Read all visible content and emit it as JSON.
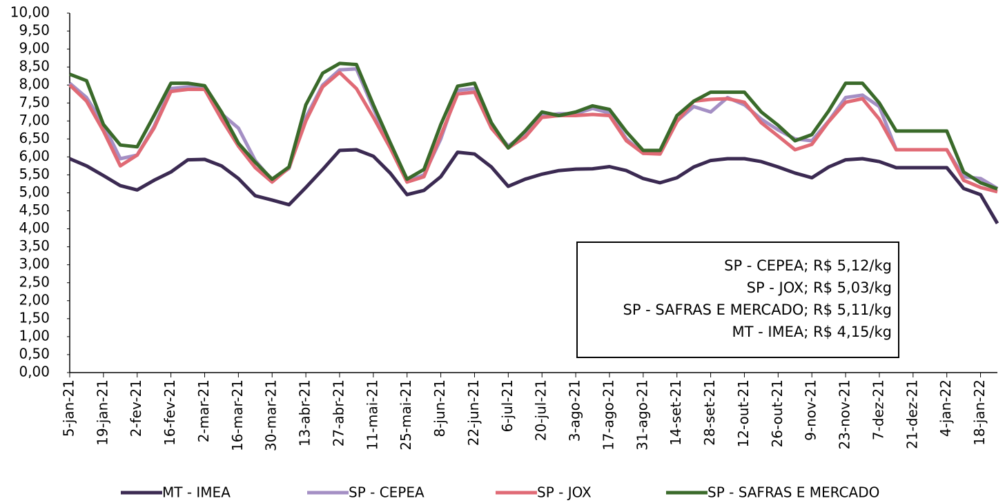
{
  "chart_data": {
    "type": "line",
    "categories": [
      "5-jan-21",
      null,
      "19-jan-21",
      null,
      "2-fev-21",
      null,
      "16-fev-21",
      null,
      "2-mar-21",
      null,
      "16-mar-21",
      null,
      "30-mar-21",
      null,
      "13-abr-21",
      null,
      "27-abr-21",
      null,
      "11-mai-21",
      null,
      "25-mai-21",
      null,
      "8-jun-21",
      null,
      "22-jun-21",
      null,
      "6-jul-21",
      null,
      "20-jul-21",
      null,
      "3-ago-21",
      null,
      "17-ago-21",
      null,
      "31-ago-21",
      null,
      "14-set-21",
      null,
      "28-set-21",
      null,
      "12-out-21",
      null,
      "26-out-21",
      null,
      "9-nov-21",
      null,
      "23-nov-21",
      null,
      "7-dez-21",
      null,
      "21-dez-21",
      null,
      "4-jan-22",
      null,
      "18-jan-22",
      null
    ],
    "series": [
      {
        "name": "MT - IMEA",
        "color": "#3b2a52",
        "values": [
          5.95,
          5.75,
          5.48,
          5.2,
          5.08,
          5.35,
          5.58,
          5.92,
          5.93,
          5.75,
          5.4,
          4.92,
          4.8,
          4.67,
          5.15,
          5.65,
          6.18,
          6.2,
          6.02,
          5.55,
          4.95,
          5.07,
          5.45,
          6.13,
          6.08,
          5.72,
          5.18,
          5.38,
          5.52,
          5.62,
          5.66,
          5.67,
          5.73,
          5.62,
          5.4,
          5.28,
          5.42,
          5.72,
          5.9,
          5.95,
          5.95,
          5.87,
          5.72,
          5.55,
          5.42,
          5.72,
          5.92,
          5.95,
          5.87,
          5.7,
          5.7,
          5.7,
          5.7,
          5.12,
          4.95,
          4.15
        ]
      },
      {
        "name": "SP - CEPEA",
        "color": "#a48fc4",
        "values": [
          8.05,
          7.65,
          6.9,
          5.95,
          6.05,
          6.85,
          7.9,
          7.95,
          7.9,
          7.2,
          6.8,
          5.9,
          5.35,
          5.68,
          7.1,
          8.0,
          8.42,
          8.45,
          7.35,
          6.3,
          5.32,
          5.5,
          6.5,
          7.85,
          7.9,
          6.85,
          6.3,
          6.65,
          7.15,
          7.2,
          7.2,
          7.35,
          7.22,
          6.5,
          6.1,
          6.12,
          7.0,
          7.4,
          7.25,
          7.65,
          7.45,
          7.05,
          6.75,
          6.5,
          6.45,
          7.0,
          7.65,
          7.72,
          7.4,
          6.2,
          6.2,
          6.2,
          6.2,
          5.45,
          5.4,
          5.12
        ]
      },
      {
        "name": "SP - JOX",
        "color": "#e06a75",
        "values": [
          8.0,
          7.55,
          6.72,
          5.75,
          6.05,
          6.8,
          7.82,
          7.88,
          7.88,
          7.05,
          6.3,
          5.7,
          5.3,
          5.7,
          7.0,
          7.95,
          8.35,
          7.9,
          7.1,
          6.25,
          5.3,
          5.45,
          6.6,
          7.75,
          7.8,
          6.8,
          6.25,
          6.55,
          7.1,
          7.15,
          7.15,
          7.18,
          7.15,
          6.45,
          6.1,
          6.08,
          6.98,
          7.55,
          7.6,
          7.62,
          7.52,
          6.95,
          6.58,
          6.2,
          6.35,
          6.98,
          7.52,
          7.62,
          7.05,
          6.2,
          6.2,
          6.2,
          6.2,
          5.35,
          5.15,
          5.03
        ]
      },
      {
        "name": "SP - SAFRAS E MERCADO",
        "color": "#3a6a2a",
        "values": [
          8.3,
          8.12,
          6.9,
          6.33,
          6.28,
          7.15,
          8.05,
          8.05,
          7.98,
          7.25,
          6.38,
          5.85,
          5.38,
          5.72,
          7.45,
          8.33,
          8.6,
          8.57,
          7.45,
          6.4,
          5.38,
          5.65,
          6.9,
          7.97,
          8.05,
          6.95,
          6.25,
          6.72,
          7.25,
          7.15,
          7.25,
          7.42,
          7.32,
          6.7,
          6.18,
          6.18,
          7.15,
          7.55,
          7.8,
          7.8,
          7.8,
          7.25,
          6.88,
          6.45,
          6.62,
          7.28,
          8.05,
          8.05,
          7.5,
          6.72,
          6.72,
          6.72,
          6.72,
          5.58,
          5.28,
          5.11
        ]
      }
    ],
    "ylim": [
      0,
      10
    ],
    "yticks": [
      {
        "value": 0,
        "label": "0,00"
      },
      {
        "value": 0.5,
        "label": "0,50"
      },
      {
        "value": 1,
        "label": "1,00"
      },
      {
        "value": 1.5,
        "label": "1,50"
      },
      {
        "value": 2,
        "label": "2,00"
      },
      {
        "value": 2.5,
        "label": "2,50"
      },
      {
        "value": 3,
        "label": "3,00"
      },
      {
        "value": 3.5,
        "label": "3,50"
      },
      {
        "value": 4,
        "label": "4,00"
      },
      {
        "value": 4.5,
        "label": "4,50"
      },
      {
        "value": 5,
        "label": "5,00"
      },
      {
        "value": 5.5,
        "label": "5,50"
      },
      {
        "value": 6,
        "label": "6,00"
      },
      {
        "value": 6.5,
        "label": "6,50"
      },
      {
        "value": 7,
        "label": "7,00"
      },
      {
        "value": 7.5,
        "label": "7,50"
      },
      {
        "value": 8,
        "label": "8,00"
      },
      {
        "value": 8.5,
        "label": "8,50"
      },
      {
        "value": 9,
        "label": "9,00"
      },
      {
        "value": 9.5,
        "label": "9,50"
      },
      {
        "value": 10,
        "label": "10,00"
      }
    ],
    "grid": false,
    "legend": "bottom",
    "annotations": [
      "SP - CEPEA; R$ 5,12/kg",
      "SP - JOX; R$ 5,03/kg",
      "SP - SAFRAS E MERCADO; R$ 5,11/kg",
      "MT - IMEA; R$ 4,15/kg"
    ]
  }
}
